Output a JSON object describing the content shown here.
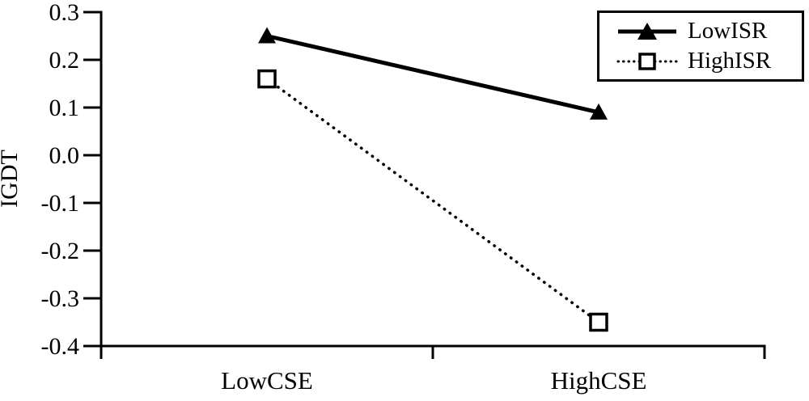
{
  "chart_data": {
    "type": "line",
    "title": "",
    "categories": [
      "LowCSE",
      "HighCSE"
    ],
    "series": [
      {
        "name": "LowISR",
        "values": [
          0.25,
          0.09
        ],
        "line_style": "solid",
        "marker": "filled-triangle"
      },
      {
        "name": "HighISR",
        "values": [
          0.16,
          -0.35
        ],
        "line_style": "dotted",
        "marker": "open-square"
      }
    ],
    "xlabel": "",
    "ylabel": "IGDT",
    "ylim": [
      -0.4,
      0.3
    ],
    "ytick_step": 0.1,
    "ytick_labels": [
      "0.3",
      "0.2",
      "0.1",
      "0.0",
      "-0.1",
      "-0.2",
      "-0.3",
      "-0.4"
    ],
    "grid": false,
    "legend_position": "top-right",
    "colors": {
      "line": "#000000",
      "background": "#ffffff",
      "marker_fill_open": "#ffffff"
    }
  }
}
